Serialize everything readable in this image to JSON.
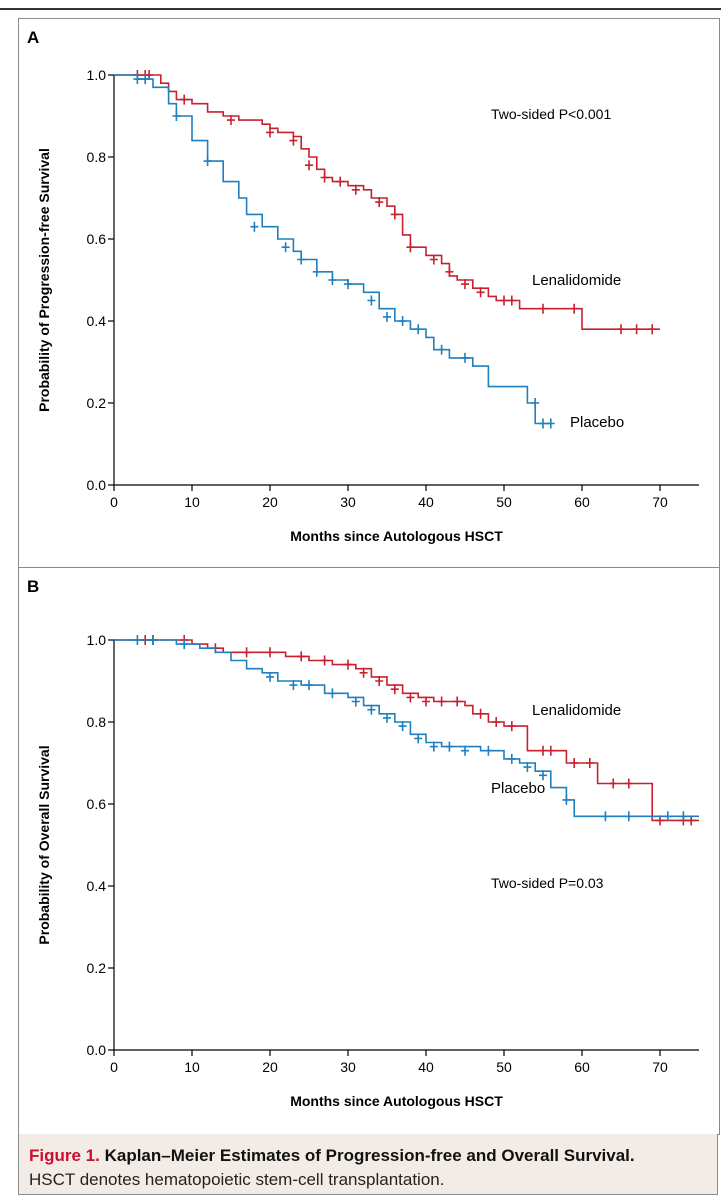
{
  "figure": {
    "caption_number": "Figure 1.",
    "caption_title": "Kaplan–Meier Estimates of Progression-free and Overall Survival.",
    "caption_note": "HSCT denotes hematopoietic stem-cell transplantation."
  },
  "colors": {
    "lenalidomide": "#c8202f",
    "placebo": "#1f7fbf",
    "axis": "#000000",
    "caption_bg": "#f3ece6",
    "caption_accent": "#c8102e"
  },
  "chart_data": [
    {
      "panel": "A",
      "type": "line",
      "ylabel": "Probability of Progression-free Survival",
      "xlabel": "Months since Autologous HSCT",
      "xlim": [
        0,
        75
      ],
      "ylim": [
        0,
        1
      ],
      "xticks": [
        0,
        10,
        20,
        30,
        40,
        50,
        60,
        70
      ],
      "yticks": [
        "0.0",
        "0.2",
        "0.4",
        "0.6",
        "0.8",
        "1.0"
      ],
      "annotation": "Two-sided P<0.001",
      "series": [
        {
          "name": "Lenalidomide",
          "color": "#c8202f",
          "points": [
            [
              0,
              1.0
            ],
            [
              5,
              1.0
            ],
            [
              6,
              0.98
            ],
            [
              7,
              0.96
            ],
            [
              8,
              0.94
            ],
            [
              10,
              0.93
            ],
            [
              12,
              0.91
            ],
            [
              14,
              0.9
            ],
            [
              16,
              0.89
            ],
            [
              19,
              0.88
            ],
            [
              20,
              0.87
            ],
            [
              21,
              0.86
            ],
            [
              23,
              0.85
            ],
            [
              24,
              0.82
            ],
            [
              25,
              0.8
            ],
            [
              26,
              0.77
            ],
            [
              27,
              0.75
            ],
            [
              28,
              0.74
            ],
            [
              30,
              0.73
            ],
            [
              32,
              0.72
            ],
            [
              33,
              0.7
            ],
            [
              35,
              0.68
            ],
            [
              36,
              0.66
            ],
            [
              37,
              0.61
            ],
            [
              38,
              0.58
            ],
            [
              40,
              0.56
            ],
            [
              42,
              0.54
            ],
            [
              43,
              0.51
            ],
            [
              44,
              0.5
            ],
            [
              46,
              0.48
            ],
            [
              48,
              0.46
            ],
            [
              49,
              0.45
            ],
            [
              52,
              0.43
            ],
            [
              60,
              0.38
            ],
            [
              70,
              0.38
            ]
          ],
          "censors": [
            [
              3,
              1.0
            ],
            [
              4,
              1.0
            ],
            [
              4.5,
              1.0
            ],
            [
              9,
              0.94
            ],
            [
              15,
              0.89
            ],
            [
              20,
              0.86
            ],
            [
              23,
              0.84
            ],
            [
              25,
              0.78
            ],
            [
              27,
              0.75
            ],
            [
              29,
              0.74
            ],
            [
              31,
              0.72
            ],
            [
              34,
              0.69
            ],
            [
              36,
              0.66
            ],
            [
              38,
              0.58
            ],
            [
              41,
              0.55
            ],
            [
              43,
              0.52
            ],
            [
              45,
              0.49
            ],
            [
              47,
              0.47
            ],
            [
              50,
              0.45
            ],
            [
              51,
              0.45
            ],
            [
              55,
              0.43
            ],
            [
              59,
              0.43
            ],
            [
              65,
              0.38
            ],
            [
              67,
              0.38
            ],
            [
              69,
              0.38
            ]
          ],
          "label": "Lenalidomide"
        },
        {
          "name": "Placebo",
          "color": "#1f7fbf",
          "points": [
            [
              0,
              1.0
            ],
            [
              3,
              0.99
            ],
            [
              5,
              0.97
            ],
            [
              7,
              0.93
            ],
            [
              8,
              0.9
            ],
            [
              10,
              0.84
            ],
            [
              12,
              0.79
            ],
            [
              14,
              0.74
            ],
            [
              16,
              0.7
            ],
            [
              17,
              0.66
            ],
            [
              19,
              0.63
            ],
            [
              21,
              0.6
            ],
            [
              23,
              0.57
            ],
            [
              24,
              0.55
            ],
            [
              26,
              0.52
            ],
            [
              28,
              0.5
            ],
            [
              30,
              0.49
            ],
            [
              32,
              0.47
            ],
            [
              34,
              0.43
            ],
            [
              36,
              0.4
            ],
            [
              38,
              0.38
            ],
            [
              40,
              0.36
            ],
            [
              41,
              0.33
            ],
            [
              43,
              0.31
            ],
            [
              46,
              0.29
            ],
            [
              48,
              0.24
            ],
            [
              53,
              0.2
            ],
            [
              54,
              0.15
            ],
            [
              56,
              0.15
            ]
          ],
          "censors": [
            [
              3,
              0.99
            ],
            [
              4,
              0.99
            ],
            [
              8,
              0.9
            ],
            [
              12,
              0.79
            ],
            [
              18,
              0.63
            ],
            [
              22,
              0.58
            ],
            [
              24,
              0.55
            ],
            [
              26,
              0.52
            ],
            [
              28,
              0.5
            ],
            [
              30,
              0.49
            ],
            [
              33,
              0.45
            ],
            [
              35,
              0.41
            ],
            [
              37,
              0.4
            ],
            [
              39,
              0.38
            ],
            [
              42,
              0.33
            ],
            [
              45,
              0.31
            ],
            [
              54,
              0.2
            ],
            [
              55,
              0.15
            ],
            [
              56,
              0.15
            ]
          ],
          "label": "Placebo"
        }
      ]
    },
    {
      "panel": "B",
      "type": "line",
      "ylabel": "Probability of Overall Survival",
      "xlabel": "Months since Autologous HSCT",
      "xlim": [
        0,
        75
      ],
      "ylim": [
        0,
        1
      ],
      "xticks": [
        0,
        10,
        20,
        30,
        40,
        50,
        60,
        70
      ],
      "yticks": [
        "0.0",
        "0.2",
        "0.4",
        "0.6",
        "0.8",
        "1.0"
      ],
      "annotation": "Two-sided P=0.03",
      "series": [
        {
          "name": "Lenalidomide",
          "color": "#c8202f",
          "points": [
            [
              0,
              1.0
            ],
            [
              8,
              1.0
            ],
            [
              10,
              0.99
            ],
            [
              12,
              0.98
            ],
            [
              14,
              0.97
            ],
            [
              18,
              0.97
            ],
            [
              22,
              0.96
            ],
            [
              25,
              0.95
            ],
            [
              28,
              0.94
            ],
            [
              31,
              0.93
            ],
            [
              33,
              0.91
            ],
            [
              35,
              0.89
            ],
            [
              37,
              0.87
            ],
            [
              39,
              0.86
            ],
            [
              41,
              0.85
            ],
            [
              45,
              0.84
            ],
            [
              46,
              0.82
            ],
            [
              48,
              0.8
            ],
            [
              50,
              0.79
            ],
            [
              53,
              0.73
            ],
            [
              57,
              0.73
            ],
            [
              58,
              0.7
            ],
            [
              62,
              0.65
            ],
            [
              68,
              0.65
            ],
            [
              69,
              0.56
            ],
            [
              75,
              0.56
            ]
          ],
          "censors": [
            [
              4,
              1.0
            ],
            [
              5,
              1.0
            ],
            [
              9,
              1.0
            ],
            [
              13,
              0.98
            ],
            [
              17,
              0.97
            ],
            [
              20,
              0.97
            ],
            [
              24,
              0.96
            ],
            [
              27,
              0.95
            ],
            [
              30,
              0.94
            ],
            [
              32,
              0.92
            ],
            [
              34,
              0.9
            ],
            [
              36,
              0.88
            ],
            [
              38,
              0.86
            ],
            [
              40,
              0.85
            ],
            [
              42,
              0.85
            ],
            [
              44,
              0.85
            ],
            [
              47,
              0.82
            ],
            [
              49,
              0.8
            ],
            [
              51,
              0.79
            ],
            [
              55,
              0.73
            ],
            [
              56,
              0.73
            ],
            [
              59,
              0.7
            ],
            [
              61,
              0.7
            ],
            [
              64,
              0.65
            ],
            [
              66,
              0.65
            ],
            [
              70,
              0.56
            ],
            [
              73,
              0.56
            ],
            [
              74,
              0.56
            ]
          ],
          "label": "Lenalidomide"
        },
        {
          "name": "Placebo",
          "color": "#1f7fbf",
          "points": [
            [
              0,
              1.0
            ],
            [
              8,
              0.99
            ],
            [
              11,
              0.98
            ],
            [
              13,
              0.97
            ],
            [
              15,
              0.95
            ],
            [
              17,
              0.93
            ],
            [
              19,
              0.92
            ],
            [
              21,
              0.9
            ],
            [
              24,
              0.89
            ],
            [
              27,
              0.87
            ],
            [
              30,
              0.86
            ],
            [
              32,
              0.84
            ],
            [
              34,
              0.82
            ],
            [
              36,
              0.8
            ],
            [
              38,
              0.77
            ],
            [
              40,
              0.75
            ],
            [
              42,
              0.74
            ],
            [
              47,
              0.73
            ],
            [
              50,
              0.71
            ],
            [
              52,
              0.7
            ],
            [
              54,
              0.68
            ],
            [
              56,
              0.64
            ],
            [
              58,
              0.61
            ],
            [
              59,
              0.57
            ],
            [
              75,
              0.57
            ]
          ],
          "censors": [
            [
              3,
              1.0
            ],
            [
              5,
              1.0
            ],
            [
              9,
              0.99
            ],
            [
              20,
              0.91
            ],
            [
              23,
              0.89
            ],
            [
              25,
              0.89
            ],
            [
              28,
              0.87
            ],
            [
              31,
              0.85
            ],
            [
              33,
              0.83
            ],
            [
              35,
              0.81
            ],
            [
              37,
              0.79
            ],
            [
              39,
              0.76
            ],
            [
              41,
              0.74
            ],
            [
              43,
              0.74
            ],
            [
              45,
              0.73
            ],
            [
              48,
              0.73
            ],
            [
              51,
              0.71
            ],
            [
              53,
              0.69
            ],
            [
              55,
              0.67
            ],
            [
              58,
              0.61
            ],
            [
              63,
              0.57
            ],
            [
              66,
              0.57
            ],
            [
              71,
              0.57
            ],
            [
              73,
              0.57
            ]
          ],
          "label": "Placebo"
        }
      ]
    }
  ]
}
